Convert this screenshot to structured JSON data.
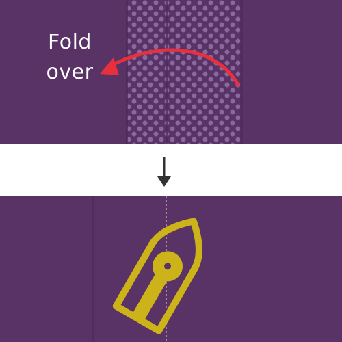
{
  "instruction": {
    "line1": "Fold",
    "line2": "over"
  },
  "icons": {
    "fold_arrow": "curved-arrow-left",
    "step_arrow": "arrow-down",
    "iron": "iron-top-view"
  },
  "colors": {
    "fabric": "#5a3366",
    "fabric_dark": "#4a2956",
    "dot": "#8a68a0",
    "band": "#ffffff",
    "arrow_red": "#e8303c",
    "iron": "#ccb31a",
    "step_arrow": "#333333",
    "label": "#ffffff"
  }
}
